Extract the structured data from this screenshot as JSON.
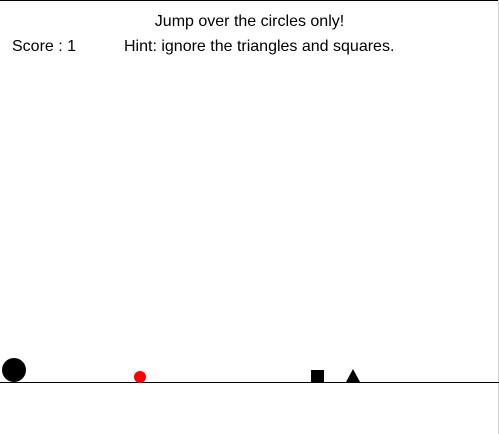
{
  "game": {
    "instruction": "Jump over the circles only!",
    "score_label": "Score :",
    "score_value": "1",
    "hint": "Hint: ignore the triangles and squares."
  },
  "colors": {
    "background": "#ffffff",
    "player": "#000000",
    "target_circle": "#ff0000",
    "obstacles": "#000000",
    "ground": "#000000"
  },
  "objects": [
    {
      "kind": "player",
      "shape": "circle",
      "color": "black"
    },
    {
      "kind": "obstacle",
      "shape": "circle",
      "color": "red"
    },
    {
      "kind": "obstacle",
      "shape": "square",
      "color": "black"
    },
    {
      "kind": "obstacle",
      "shape": "triangle",
      "color": "black"
    }
  ]
}
